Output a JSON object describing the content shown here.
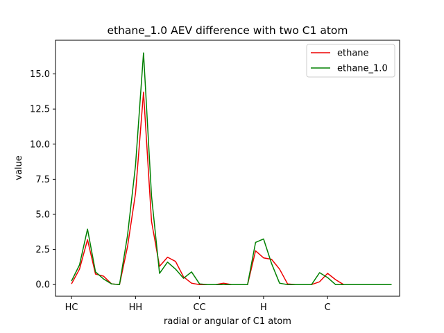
{
  "chart_data": {
    "type": "line",
    "title": "ethane_1.0 AEV difference with two C1 atom",
    "xlabel": "radial or angular of C1 atom",
    "ylabel": "value",
    "x_tick_positions": [
      0,
      8,
      16,
      24,
      32
    ],
    "x_tick_labels": [
      "HC",
      "HH",
      "CC",
      "H",
      "C"
    ],
    "y_ticks": [
      0.0,
      2.5,
      5.0,
      7.5,
      10.0,
      12.5,
      15.0
    ],
    "y_tick_labels": [
      "0.0",
      "2.5",
      "5.0",
      "7.5",
      "10.0",
      "12.5",
      "15.0"
    ],
    "xlim": [
      -2,
      41
    ],
    "ylim": [
      -0.83,
      17.4
    ],
    "grid": false,
    "legend_position": "top-right",
    "x": [
      0,
      1,
      2,
      3,
      4,
      5,
      6,
      7,
      8,
      9,
      10,
      11,
      12,
      13,
      14,
      15,
      16,
      17,
      18,
      19,
      20,
      21,
      22,
      23,
      24,
      25,
      26,
      27,
      28,
      29,
      30,
      31,
      32,
      33,
      34,
      35,
      36,
      37,
      38,
      39,
      40
    ],
    "series": [
      {
        "name": "ethane",
        "color": "#ee0000",
        "values": [
          0.05,
          1.1,
          3.2,
          0.75,
          0.6,
          0.05,
          0.0,
          2.7,
          6.5,
          13.7,
          4.5,
          1.3,
          1.95,
          1.65,
          0.55,
          0.1,
          0.0,
          0.0,
          0.0,
          0.1,
          0.0,
          0.0,
          0.0,
          2.4,
          1.9,
          1.8,
          1.1,
          0.05,
          0.0,
          0.0,
          0.0,
          0.2,
          0.8,
          0.35,
          0.0,
          0.0,
          0.0,
          0.0,
          0.0,
          0.0,
          0.0
        ]
      },
      {
        "name": "ethane_1.0",
        "color": "#008000",
        "values": [
          0.25,
          1.4,
          3.95,
          0.9,
          0.4,
          0.05,
          0.0,
          3.5,
          8.5,
          16.5,
          6.3,
          0.8,
          1.6,
          1.1,
          0.45,
          0.9,
          0.05,
          0.0,
          0.0,
          0.0,
          0.0,
          0.0,
          0.0,
          3.0,
          3.25,
          1.5,
          0.1,
          0.0,
          0.0,
          0.0,
          0.0,
          0.85,
          0.5,
          0.0,
          0.0,
          0.0,
          0.0,
          0.0,
          0.0,
          0.0,
          0.0
        ]
      }
    ]
  }
}
